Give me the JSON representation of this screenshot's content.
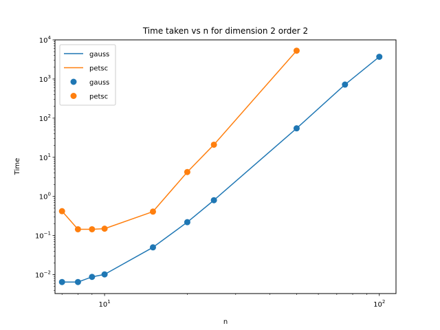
{
  "chart_data": {
    "type": "line",
    "title": "Time taken vs n for dimension 2 order 2",
    "xlabel": "n",
    "ylabel": "Time",
    "xscale": "log",
    "yscale": "log",
    "xlim": [
      6.6,
      115
    ],
    "ylim": [
      0.0033,
      10000
    ],
    "grid": false,
    "legend_position": "top-left",
    "x_ticks": [
      {
        "value": 10,
        "base": "10",
        "exp": "1"
      },
      {
        "value": 100,
        "base": "10",
        "exp": "2"
      }
    ],
    "y_ticks": [
      {
        "value": 0.01,
        "base": "10",
        "exp": "−2"
      },
      {
        "value": 0.1,
        "base": "10",
        "exp": "−1"
      },
      {
        "value": 1,
        "base": "10",
        "exp": "0"
      },
      {
        "value": 10,
        "base": "10",
        "exp": "1"
      },
      {
        "value": 100,
        "base": "10",
        "exp": "2"
      },
      {
        "value": 1000,
        "base": "10",
        "exp": "3"
      },
      {
        "value": 10000,
        "base": "10",
        "exp": "4"
      }
    ],
    "series": [
      {
        "name": "gauss",
        "color": "#1f77b4",
        "x": [
          7,
          8,
          9,
          10,
          15,
          20,
          25,
          50,
          75,
          100
        ],
        "y": [
          0.0065,
          0.0065,
          0.0088,
          0.0102,
          0.05,
          0.22,
          0.8,
          55,
          720,
          3700
        ]
      },
      {
        "name": "petsc",
        "color": "#ff7f0e",
        "x": [
          7,
          8,
          9,
          10,
          15,
          20,
          25,
          50
        ],
        "y": [
          0.42,
          0.145,
          0.145,
          0.15,
          0.41,
          4.2,
          21,
          5300
        ]
      }
    ],
    "legend_entries": [
      {
        "label": "gauss",
        "kind": "line",
        "series": 0
      },
      {
        "label": "petsc",
        "kind": "line",
        "series": 1
      },
      {
        "label": "gauss",
        "kind": "marker",
        "series": 0
      },
      {
        "label": "petsc",
        "kind": "marker",
        "series": 1
      }
    ]
  }
}
